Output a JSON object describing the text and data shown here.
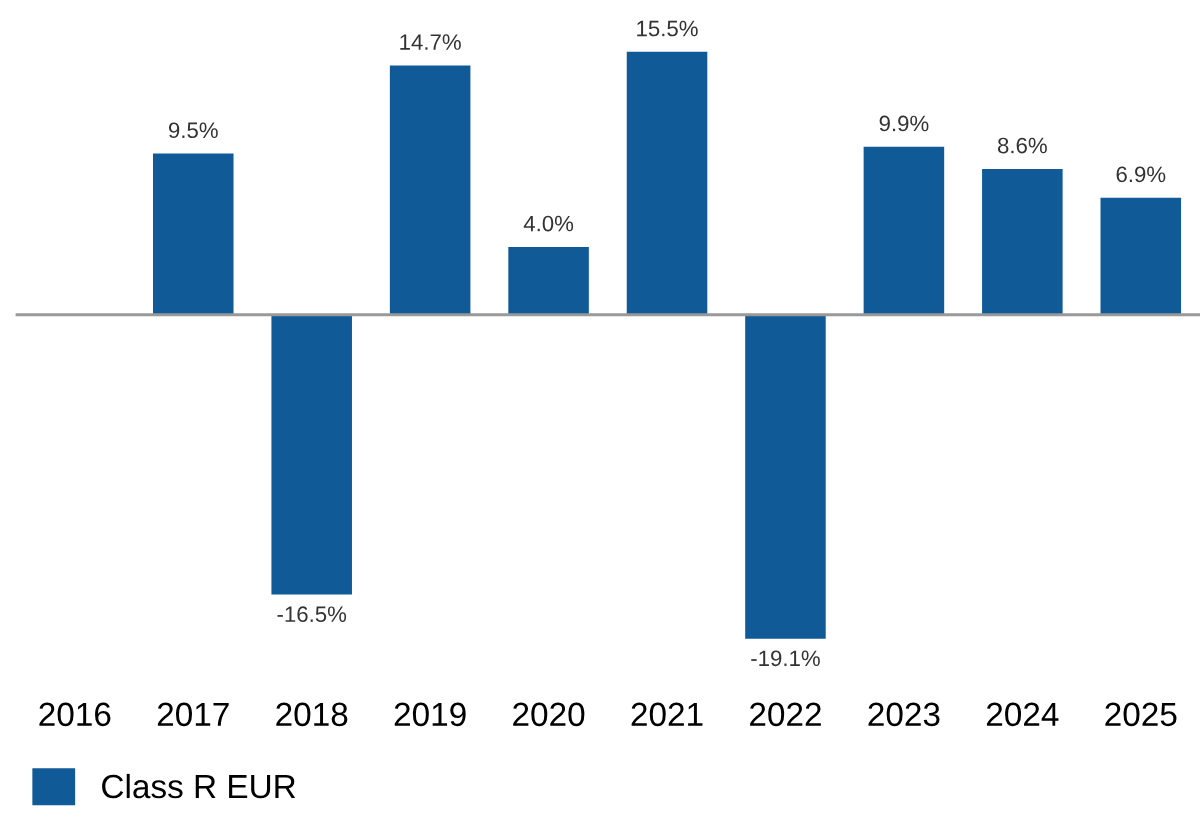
{
  "chart_data": {
    "type": "bar",
    "categories": [
      "2016",
      "2017",
      "2018",
      "2019",
      "2020",
      "2021",
      "2022",
      "2023",
      "2024",
      "2025"
    ],
    "series": [
      {
        "name": "Class R EUR",
        "color": "#105a97",
        "values": [
          null,
          9.5,
          -16.5,
          14.7,
          4.0,
          15.5,
          -19.1,
          9.9,
          8.6,
          6.9
        ],
        "value_labels": [
          null,
          "9.5%",
          "-16.5%",
          "14.7%",
          "4.0%",
          "15.5%",
          "-19.1%",
          "9.9%",
          "8.6%",
          "6.9%"
        ]
      }
    ],
    "legend": "bottom left",
    "grid": false
  }
}
